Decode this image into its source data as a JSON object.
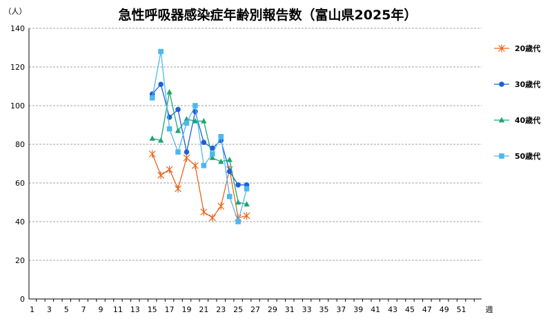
{
  "chart_data": {
    "type": "line",
    "title": "急性呼吸器感染症年齢別報告数（富山県2025年）",
    "ylabel": "（人）",
    "xlabel": "週",
    "ylim": [
      0,
      140
    ],
    "xlim": [
      1,
      53
    ],
    "yticks": [
      0,
      20,
      40,
      60,
      80,
      100,
      120,
      140
    ],
    "xticks": [
      1,
      3,
      5,
      7,
      9,
      11,
      13,
      15,
      17,
      19,
      21,
      23,
      25,
      27,
      29,
      31,
      33,
      35,
      37,
      39,
      41,
      43,
      45,
      47,
      49,
      51
    ],
    "grid": true,
    "legend_position": "right",
    "series": [
      {
        "name": "20歳代",
        "color": "#E8641B",
        "marker": "asterisk",
        "x": [
          15,
          16,
          17,
          18,
          19,
          20,
          21,
          22,
          23,
          24,
          25,
          26
        ],
        "values": [
          75,
          64,
          67,
          57,
          73,
          69,
          45,
          42,
          48,
          67,
          42,
          43
        ]
      },
      {
        "name": "30歳代",
        "color": "#1F5FD8",
        "marker": "circle",
        "x": [
          15,
          16,
          17,
          18,
          19,
          20,
          21,
          22,
          23,
          24,
          25,
          26
        ],
        "values": [
          106,
          111,
          94,
          98,
          76,
          97,
          81,
          78,
          82,
          66,
          59,
          59
        ]
      },
      {
        "name": "40歳代",
        "color": "#1BA672",
        "marker": "triangle",
        "x": [
          15,
          16,
          17,
          18,
          19,
          20,
          21,
          22,
          23,
          24,
          25,
          26
        ],
        "values": [
          83,
          82,
          107,
          87,
          93,
          92,
          92,
          73,
          71,
          72,
          50,
          49
        ]
      },
      {
        "name": "50歳代",
        "color": "#4DB8EE",
        "marker": "square",
        "x": [
          15,
          16,
          17,
          18,
          19,
          20,
          21,
          22,
          23,
          24,
          25,
          26
        ],
        "values": [
          104,
          128,
          88,
          76,
          91,
          100,
          69,
          75,
          84,
          53,
          40,
          57
        ]
      }
    ]
  }
}
